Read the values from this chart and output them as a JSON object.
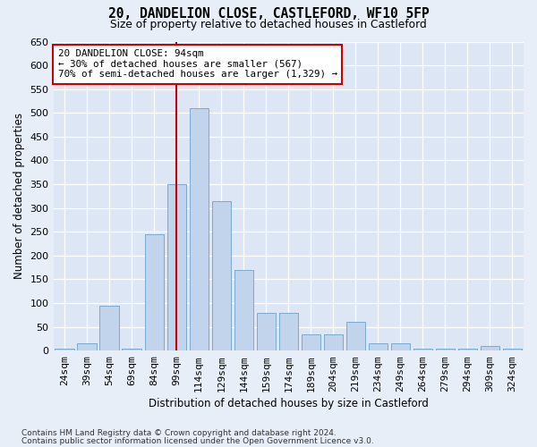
{
  "title": "20, DANDELION CLOSE, CASTLEFORD, WF10 5FP",
  "subtitle": "Size of property relative to detached houses in Castleford",
  "xlabel": "Distribution of detached houses by size in Castleford",
  "ylabel": "Number of detached properties",
  "categories": [
    "24sqm",
    "39sqm",
    "54sqm",
    "69sqm",
    "84sqm",
    "99sqm",
    "114sqm",
    "129sqm",
    "144sqm",
    "159sqm",
    "174sqm",
    "189sqm",
    "204sqm",
    "219sqm",
    "234sqm",
    "249sqm",
    "264sqm",
    "279sqm",
    "294sqm",
    "309sqm",
    "324sqm"
  ],
  "values": [
    5,
    15,
    95,
    5,
    245,
    350,
    510,
    315,
    170,
    80,
    80,
    35,
    35,
    60,
    15,
    15,
    5,
    5,
    5,
    10,
    5
  ],
  "bar_color": "#c2d4eb",
  "bar_edge_color": "#7aaad0",
  "fig_facecolor": "#e8eef8",
  "ax_facecolor": "#dce6f5",
  "grid_color": "#ffffff",
  "vline_position": 5.0,
  "vline_color": "#cc0000",
  "annotation_line1": "20 DANDELION CLOSE: 94sqm",
  "annotation_line2": "← 30% of detached houses are smaller (567)",
  "annotation_line3": "70% of semi-detached houses are larger (1,329) →",
  "annotation_box_facecolor": "#ffffff",
  "annotation_box_edgecolor": "#cc0000",
  "ylim": [
    0,
    650
  ],
  "yticks": [
    0,
    50,
    100,
    150,
    200,
    250,
    300,
    350,
    400,
    450,
    500,
    550,
    600,
    650
  ],
  "footnote1": "Contains HM Land Registry data © Crown copyright and database right 2024.",
  "footnote2": "Contains public sector information licensed under the Open Government Licence v3.0."
}
